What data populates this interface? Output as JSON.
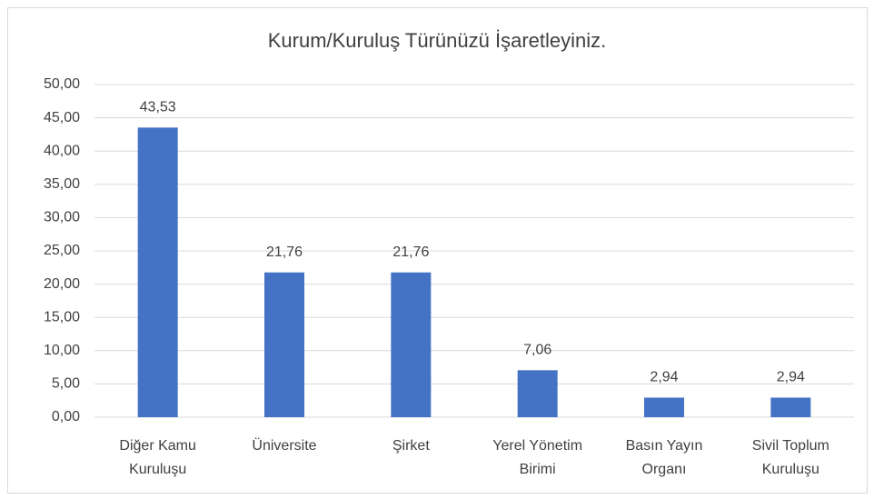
{
  "chart_data": {
    "type": "bar",
    "title": "Kurum/Kuruluş Türünüzü İşaretleyiniz.",
    "categories": [
      "Diğer Kamu Kuruluşu",
      "Üniversite",
      "Şirket",
      "Yerel Yönetim Birimi",
      "Basın Yayın Organı",
      "Sivil Toplum Kuruluşu"
    ],
    "values": [
      43.53,
      21.76,
      21.76,
      7.06,
      2.94,
      2.94
    ],
    "value_labels": [
      "43,53",
      "21,76",
      "21,76",
      "7,06",
      "2,94",
      "2,94"
    ],
    "color": "#4472c4",
    "ylim": [
      0,
      50
    ],
    "yticks": [
      {
        "value": 0,
        "label": "0,00"
      },
      {
        "value": 5,
        "label": "5,00"
      },
      {
        "value": 10,
        "label": "10,00"
      },
      {
        "value": 15,
        "label": "15,00"
      },
      {
        "value": 20,
        "label": "20,00"
      },
      {
        "value": 25,
        "label": "25,00"
      },
      {
        "value": 30,
        "label": "30,00"
      },
      {
        "value": 35,
        "label": "35,00"
      },
      {
        "value": 40,
        "label": "40,00"
      },
      {
        "value": 45,
        "label": "45,00"
      },
      {
        "value": 50,
        "label": "50,00"
      }
    ],
    "grid": true
  }
}
